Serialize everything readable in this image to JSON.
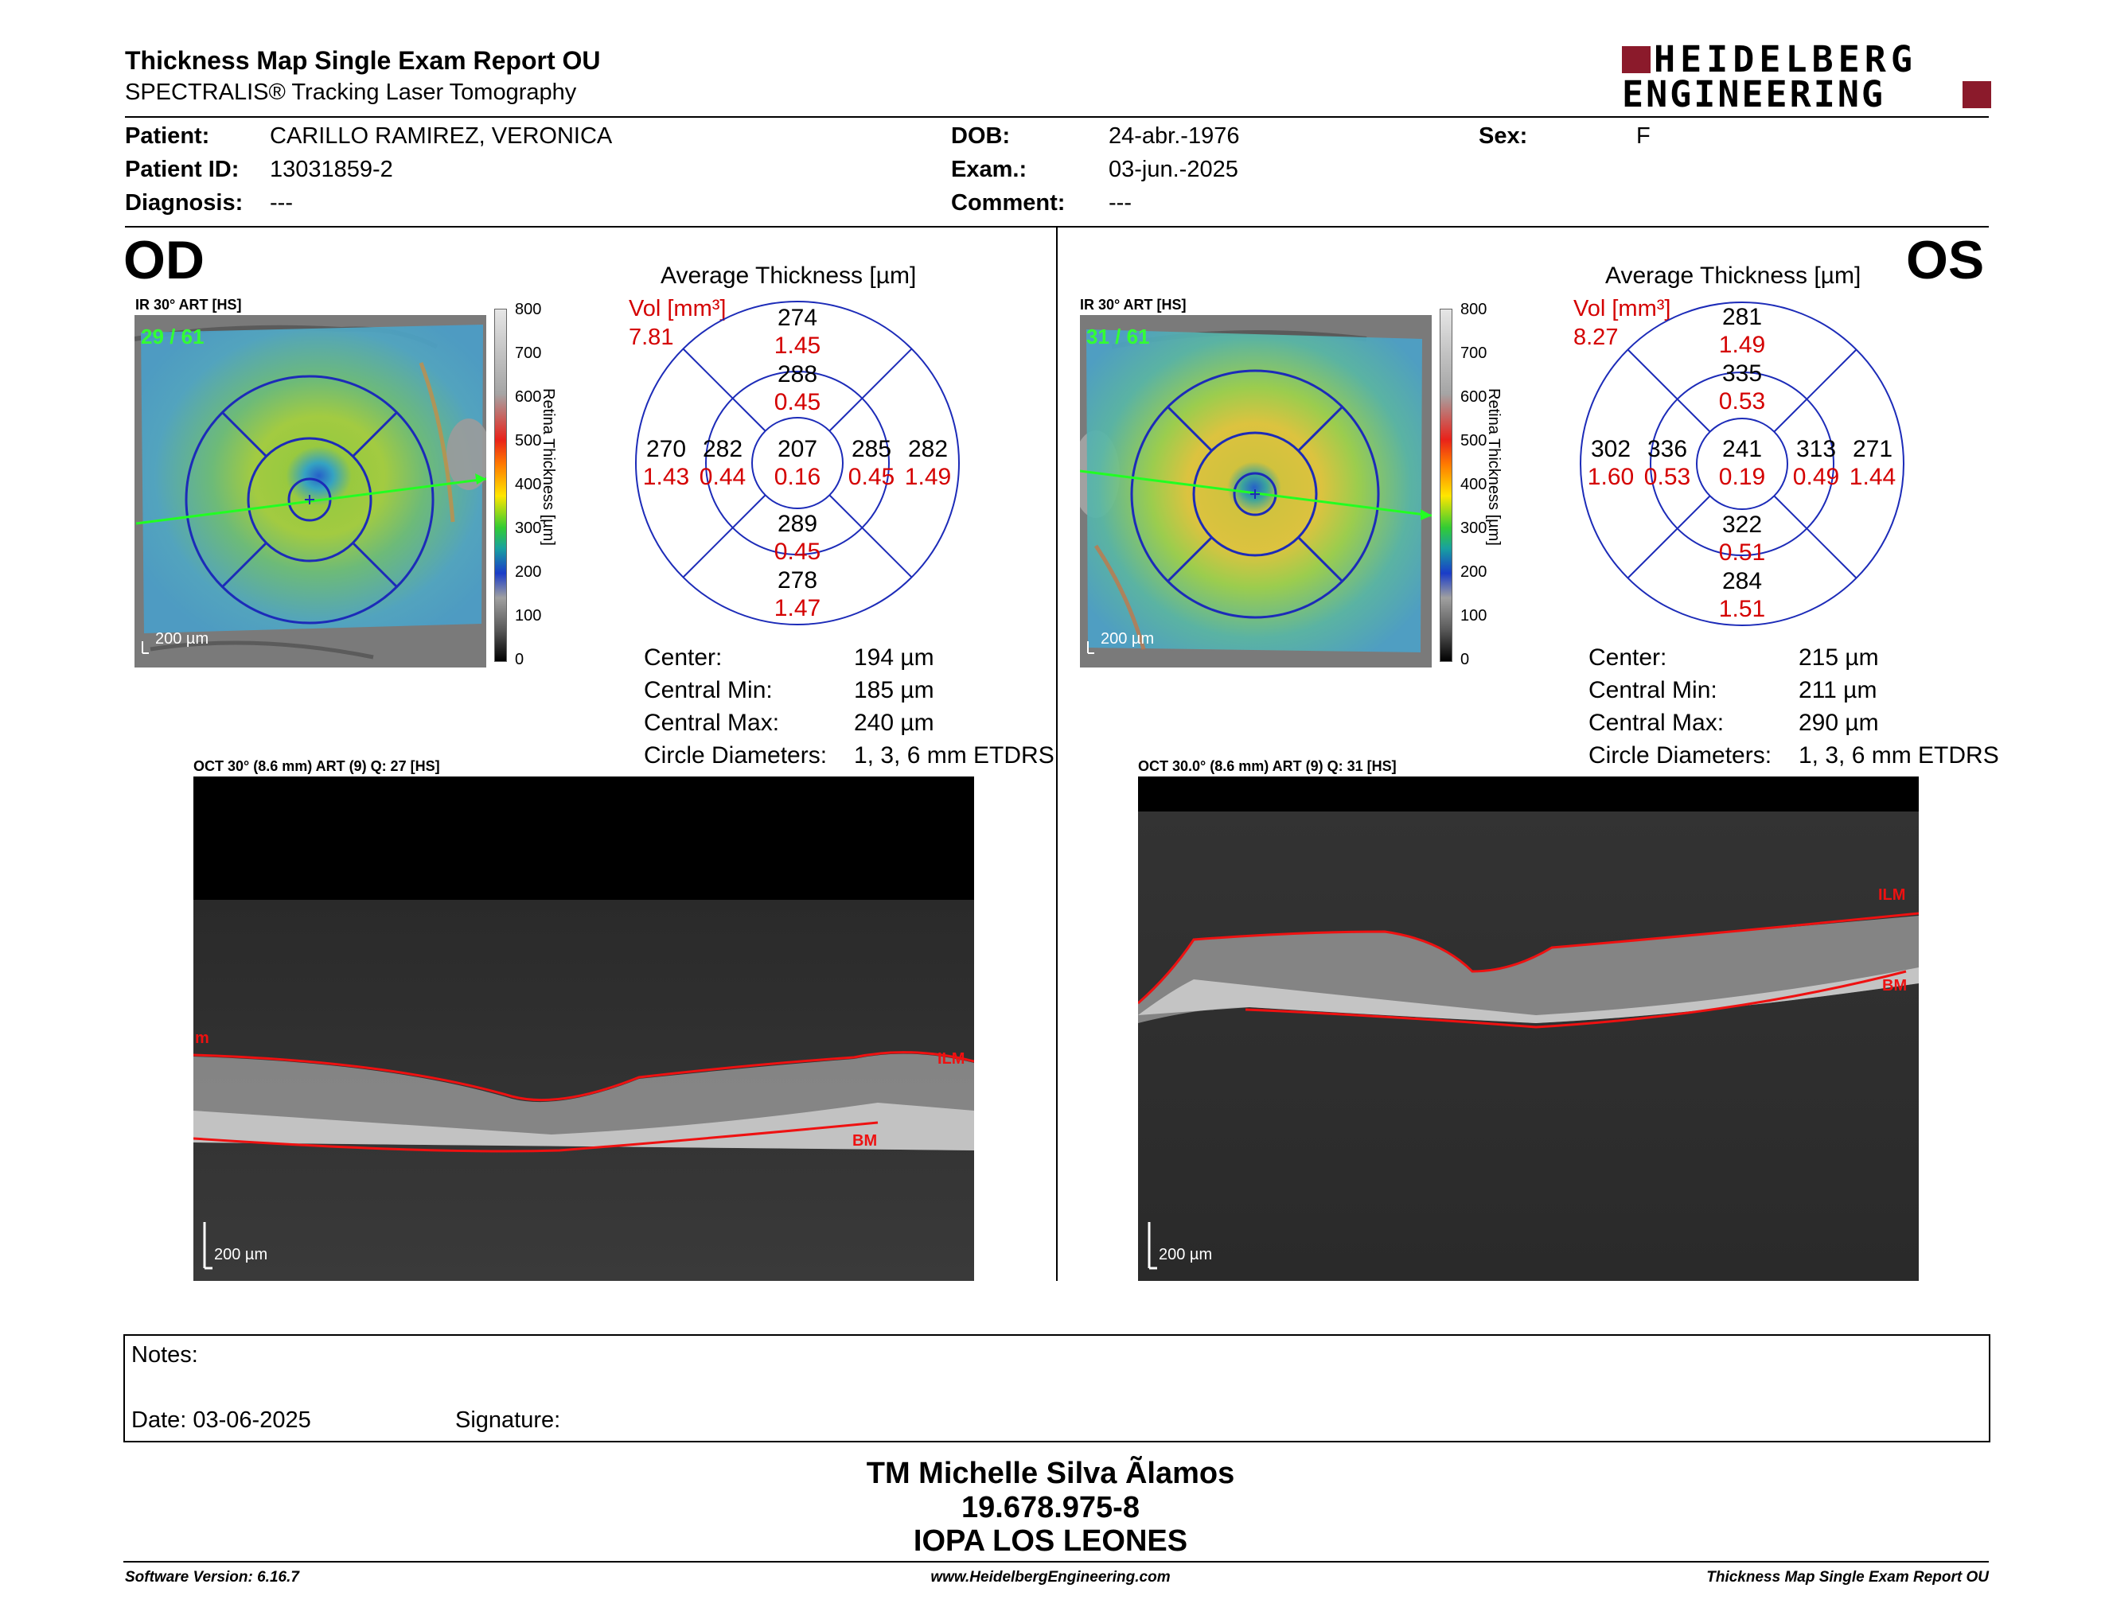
{
  "header": {
    "title": "Thickness Map Single Exam Report OU",
    "subtitle": "SPECTRALIS® Tracking Laser Tomography",
    "logo_line1": "HEIDELBERG",
    "logo_line2": "ENGINEERING",
    "brand_color": "#8b1a2b"
  },
  "patient": {
    "patient_label": "Patient:",
    "patient_value": "CARILLO RAMIREZ, VERONICA",
    "id_label": "Patient ID:",
    "id_value": "13031859-2",
    "diagnosis_label": "Diagnosis:",
    "diagnosis_value": "---",
    "dob_label": "DOB:",
    "dob_value": "24-abr.-1976",
    "exam_label": "Exam.:",
    "exam_value": "03-jun.-2025",
    "comment_label": "Comment:",
    "comment_value": "---",
    "sex_label": "Sex:",
    "sex_value": "F"
  },
  "od": {
    "eye": "OD",
    "map_label": "IR 30° ART [HS]",
    "frames": "29 / 61",
    "map_scale": "200 µm",
    "avg_title": "Average Thickness [µm]",
    "vol_label": "Vol [mm³]",
    "total_vol": "7.81",
    "etdrs": {
      "center": {
        "t": "207",
        "v": "0.16"
      },
      "inner_sup": {
        "t": "288",
        "v": "0.45"
      },
      "inner_inf": {
        "t": "289",
        "v": "0.45"
      },
      "inner_left": {
        "t": "282",
        "v": "0.44"
      },
      "inner_right": {
        "t": "285",
        "v": "0.45"
      },
      "outer_sup": {
        "t": "274",
        "v": "1.45"
      },
      "outer_inf": {
        "t": "278",
        "v": "1.47"
      },
      "outer_left": {
        "t": "270",
        "v": "1.43"
      },
      "outer_right": {
        "t": "282",
        "v": "1.49"
      }
    },
    "stats": [
      {
        "label": "Center:",
        "value": "194 µm"
      },
      {
        "label": "Central Min:",
        "value": "185 µm"
      },
      {
        "label": "Central Max:",
        "value": "240 µm"
      },
      {
        "label": "Circle Diameters:",
        "value": "1, 3, 6 mm ETDRS"
      }
    ],
    "oct_label": "OCT 30° (8.6 mm) ART (9) Q: 27 [HS]",
    "oct_scale": "200 µm",
    "ilm": "ILM",
    "bm": "BM",
    "ilm_left": "m"
  },
  "os": {
    "eye": "OS",
    "map_label": "IR 30° ART [HS]",
    "frames": "31 / 61",
    "map_scale": "200 µm",
    "avg_title": "Average Thickness [µm]",
    "vol_label": "Vol [mm³]",
    "total_vol": "8.27",
    "etdrs": {
      "center": {
        "t": "241",
        "v": "0.19"
      },
      "inner_sup": {
        "t": "335",
        "v": "0.53"
      },
      "inner_inf": {
        "t": "322",
        "v": "0.51"
      },
      "inner_left": {
        "t": "336",
        "v": "0.53"
      },
      "inner_right": {
        "t": "313",
        "v": "0.49"
      },
      "outer_sup": {
        "t": "281",
        "v": "1.49"
      },
      "outer_inf": {
        "t": "284",
        "v": "1.51"
      },
      "outer_left": {
        "t": "302",
        "v": "1.60"
      },
      "outer_right": {
        "t": "271",
        "v": "1.44"
      }
    },
    "stats": [
      {
        "label": "Center:",
        "value": "215 µm"
      },
      {
        "label": "Central Min:",
        "value": "211 µm"
      },
      {
        "label": "Central Max:",
        "value": "290 µm"
      },
      {
        "label": "Circle Diameters:",
        "value": "1, 3, 6 mm ETDRS"
      }
    ],
    "oct_label": "OCT 30.0° (8.6 mm) ART (9) Q: 31 [HS]",
    "oct_scale": "200 µm",
    "ilm": "ILM",
    "bm": "BM"
  },
  "colorbar": {
    "ticks": [
      "800",
      "700",
      "600",
      "500",
      "400",
      "300",
      "200",
      "100",
      "0"
    ],
    "axis_label": "Retina Thickness [µm]"
  },
  "notes": {
    "notes_label": "Notes:",
    "date_label": "Date: 03-06-2025",
    "signature_label": "Signature:"
  },
  "signature_block": {
    "name": "TM Michelle Silva Ãlamos",
    "rut": "19.678.975-8",
    "institution": "IOPA LOS LEONES"
  },
  "footer": {
    "software": "Software Version: 6.16.7",
    "website": "www.HeidelbergEngineering.com",
    "report": "Thickness Map Single Exam Report OU"
  }
}
